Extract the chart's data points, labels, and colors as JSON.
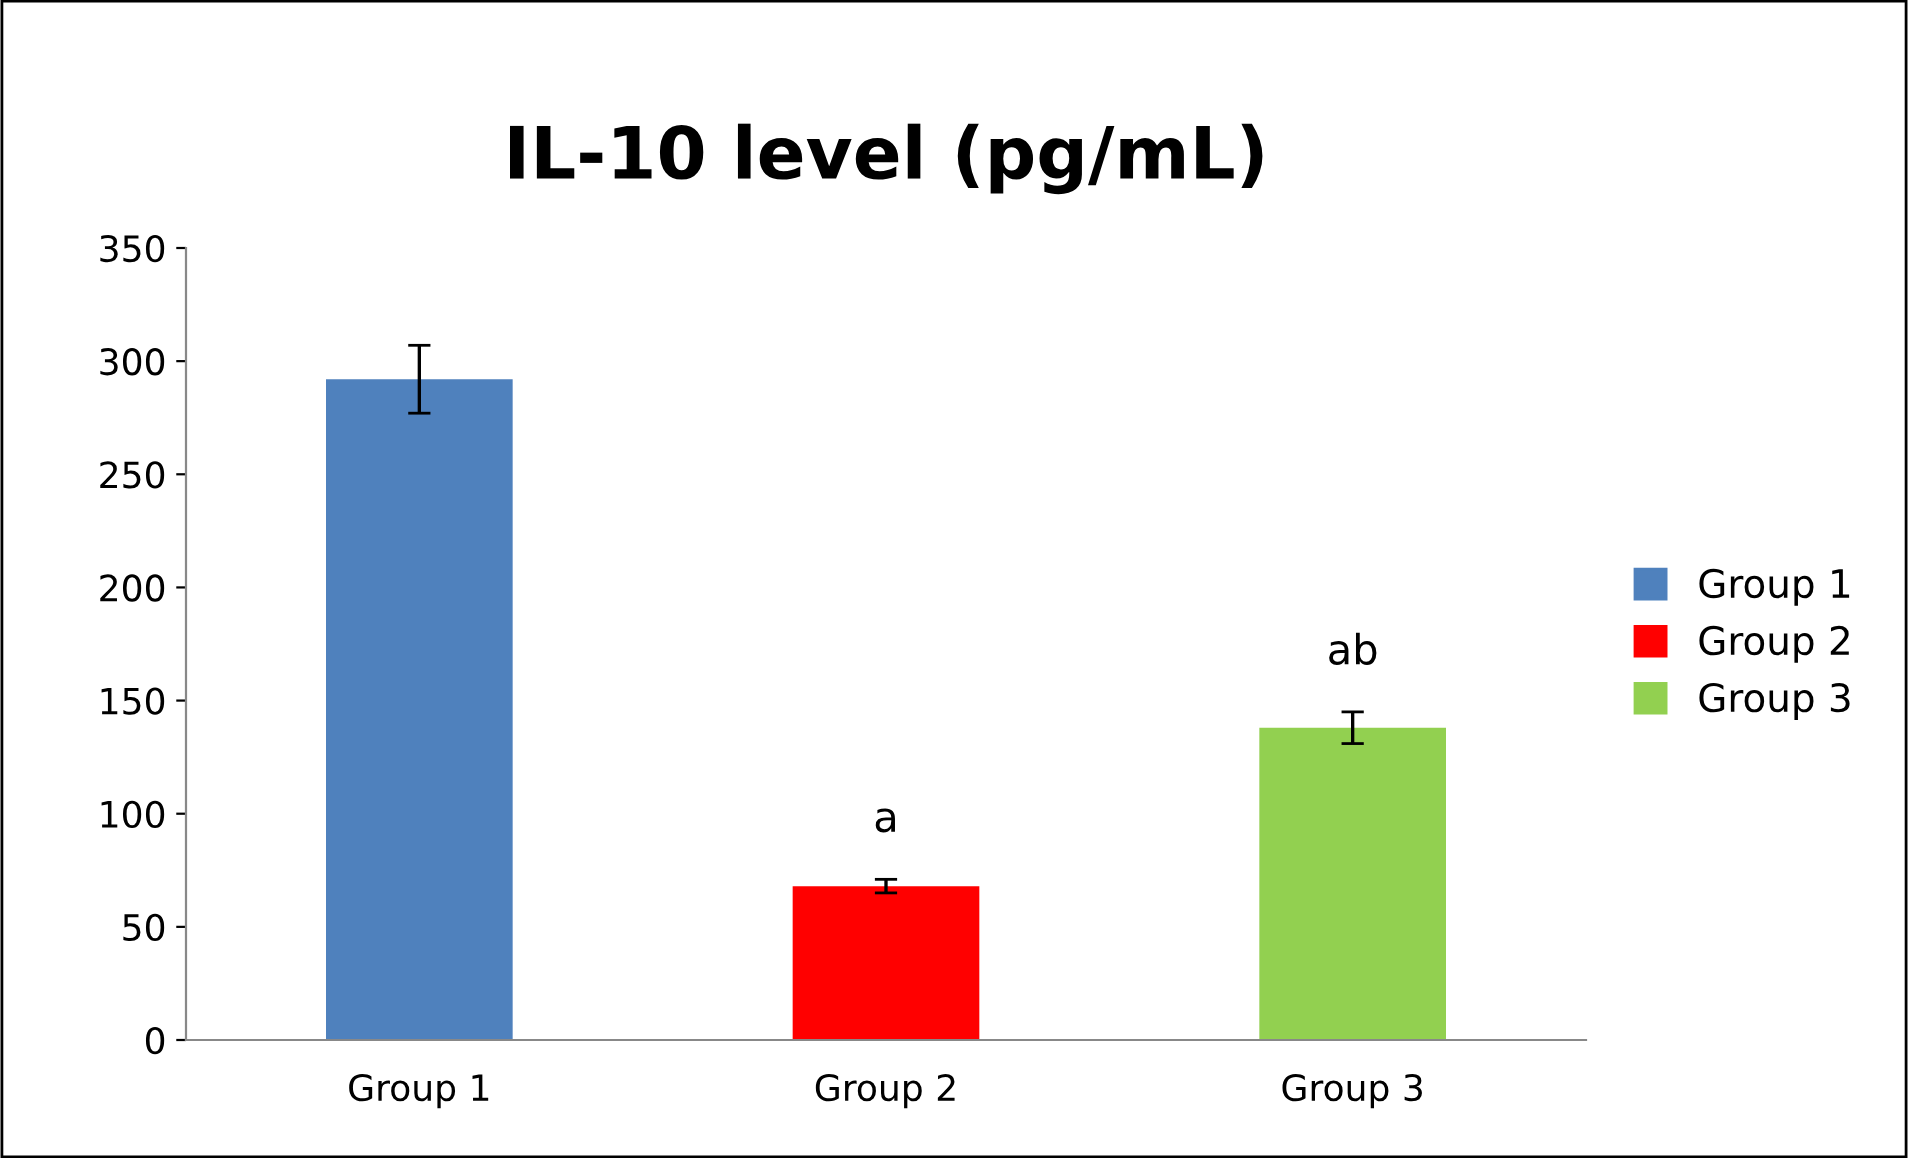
{
  "chart_data": {
    "type": "bar",
    "title": "IL-10 level (pg/mL)",
    "categories": [
      "Group 1",
      "Group 2",
      "Group 3"
    ],
    "series": [
      {
        "name": "Group 1",
        "color": "#4f81bd",
        "values": [
          292,
          null,
          null
        ],
        "errors": [
          15,
          null,
          null
        ]
      },
      {
        "name": "Group 2",
        "color": "#ff0000",
        "values": [
          null,
          68,
          null
        ],
        "errors": [
          null,
          3,
          null
        ]
      },
      {
        "name": "Group 3",
        "color": "#92d050",
        "values": [
          null,
          null,
          138
        ],
        "errors": [
          null,
          null,
          7
        ]
      }
    ],
    "annotations": [
      {
        "text": "a",
        "x": "Group 2",
        "y": 71
      },
      {
        "text": "ab",
        "x": "Group 3",
        "y": 145
      }
    ],
    "ylim": [
      0,
      350
    ],
    "yticks": [
      0,
      50,
      100,
      150,
      200,
      250,
      300,
      350
    ],
    "grid": false,
    "legend": "right"
  }
}
